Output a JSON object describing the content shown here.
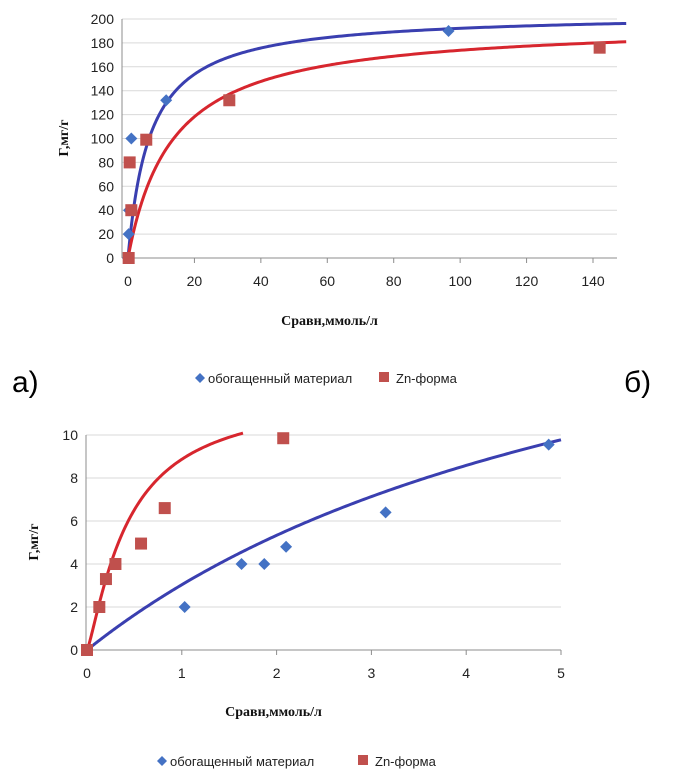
{
  "panel_labels": {
    "a": "а)",
    "b": "б)"
  },
  "colors": {
    "series1": "#4472C4",
    "series2": "#C0504D",
    "fit1": "#3A3FB0",
    "fit2": "#D7262E",
    "grid": "#D9D9D9",
    "axis": "#8C8C8C"
  },
  "chart_data": [
    {
      "type": "scatter",
      "xlabel": "Сравн,ммоль/л",
      "ylabel": "Г,мг/г",
      "xlim": [
        0,
        140
      ],
      "ylim": [
        0,
        200
      ],
      "xticks": [
        "0",
        "20",
        "40",
        "60",
        "80",
        "100",
        "120",
        "140"
      ],
      "yticks": [
        "0",
        "20",
        "40",
        "60",
        "80",
        "100",
        "120",
        "140",
        "160",
        "180",
        "200"
      ],
      "grid": "horizontal",
      "legend_position": "bottom",
      "series": [
        {
          "name": "обогащенный материал",
          "marker": "diamond",
          "color": "#4472C4",
          "points": [
            [
              0,
              0
            ],
            [
              0.2,
              20
            ],
            [
              0.3,
              40
            ],
            [
              0.5,
              80
            ],
            [
              1,
              100
            ],
            [
              11.5,
              132
            ],
            [
              96.5,
              190
            ]
          ],
          "fit_line": {
            "color": "#3A3FB0",
            "qmax": 205,
            "k": 0.15
          }
        },
        {
          "name": "Zn-форма",
          "marker": "square",
          "color": "#C0504D",
          "points": [
            [
              0.2,
              0
            ],
            [
              1,
              40
            ],
            [
              0.5,
              80
            ],
            [
              5.5,
              99
            ],
            [
              30.5,
              132
            ],
            [
              142,
              176
            ]
          ],
          "fit_line": {
            "color": "#D7262E",
            "qmax": 197,
            "k": 0.075
          }
        }
      ]
    },
    {
      "type": "scatter",
      "xlabel": "Сравн,ммоль/л",
      "ylabel": "Г,мг/г",
      "xlim": [
        0,
        5
      ],
      "ylim": [
        0,
        10
      ],
      "xticks": [
        "0",
        "1",
        "2",
        "3",
        "4",
        "5"
      ],
      "yticks": [
        "0",
        "2",
        "4",
        "6",
        "8",
        "10"
      ],
      "grid": "horizontal",
      "legend_position": "bottom",
      "series": [
        {
          "name": "обогащенный материал",
          "marker": "diamond",
          "color": "#4472C4",
          "points": [
            [
              0,
              0
            ],
            [
              1.03,
              2.0
            ],
            [
              1.63,
              4.0
            ],
            [
              1.87,
              4.0
            ],
            [
              2.1,
              4.8
            ],
            [
              3.15,
              6.4
            ],
            [
              4.87,
              9.55
            ]
          ],
          "fit_line": {
            "color": "#3A3FB0",
            "qmax": 22,
            "k": 0.16
          }
        },
        {
          "name": "Zn-форма",
          "marker": "square",
          "color": "#C0504D",
          "points": [
            [
              0,
              0
            ],
            [
              0.13,
              2.0
            ],
            [
              0.2,
              3.3
            ],
            [
              0.3,
              4.0
            ],
            [
              0.57,
              4.95
            ],
            [
              0.82,
              6.6
            ],
            [
              2.07,
              9.85
            ]
          ],
          "fit_line": {
            "color": "#D7262E",
            "qmax": 12,
            "k": 2.3,
            "n": 1.25
          }
        }
      ]
    }
  ]
}
